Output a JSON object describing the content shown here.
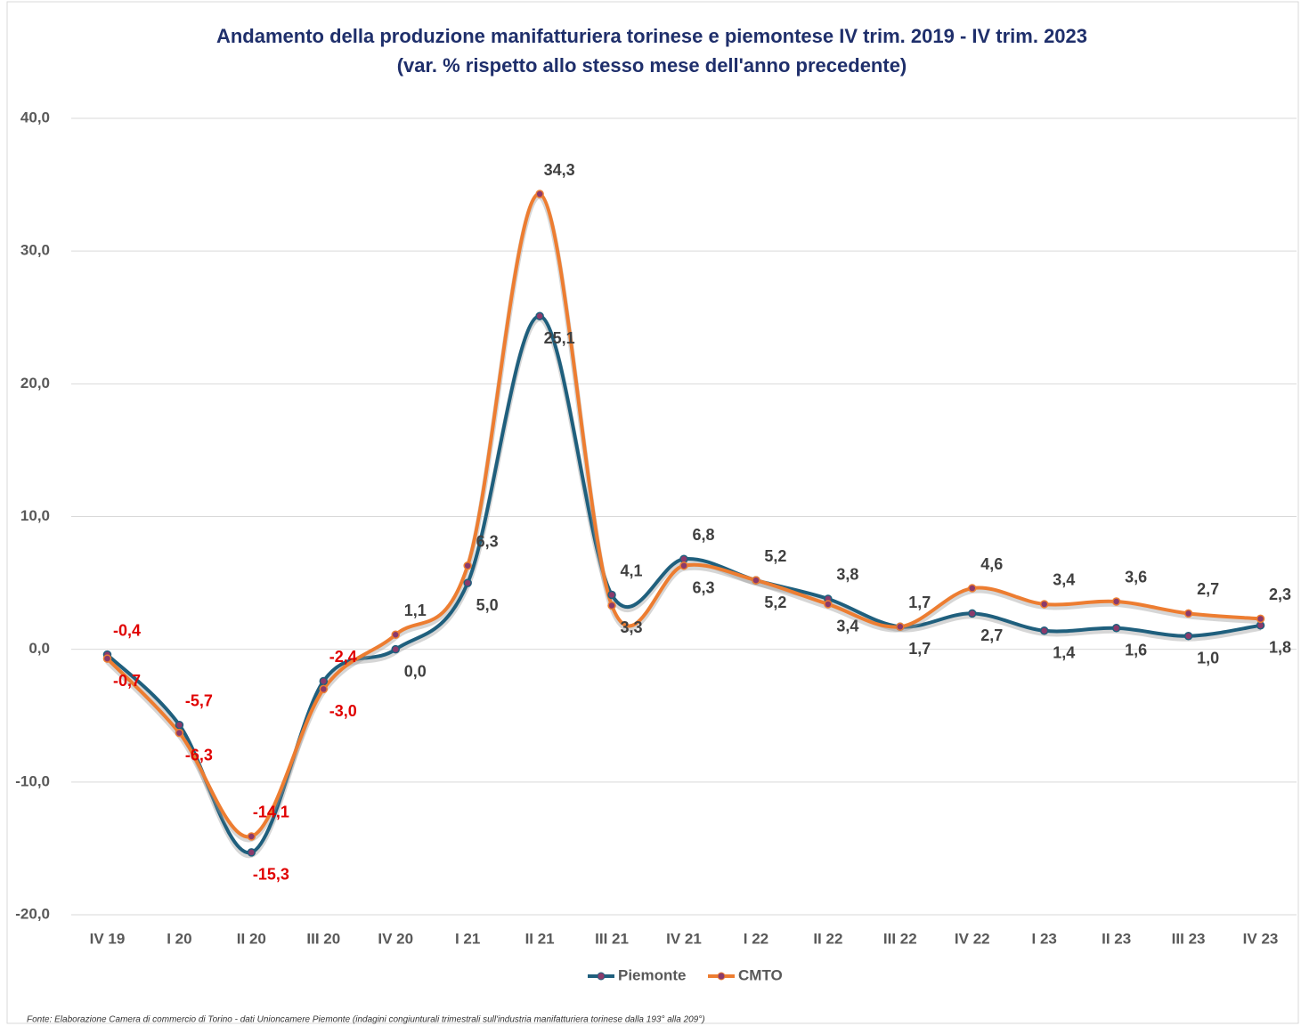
{
  "chart_data": {
    "type": "line",
    "title": "Andamento della produzione manifatturiera torinese e piemontese  IV trim. 2019 - IV trim. 2023",
    "subtitle": "(var. % rispetto allo stesso mese dell'anno precedente)",
    "categories": [
      "IV 19",
      "I 20",
      "II 20",
      "III 20",
      "IV 20",
      "I 21",
      "II 21",
      "III 21",
      "IV 21",
      "I 22",
      "II 22",
      "III 22",
      "IV 22",
      "I 23",
      "II 23",
      "III 23",
      "IV 23"
    ],
    "series": [
      {
        "name": "Piemonte",
        "color": "#1f5f7d",
        "values": [
          -0.4,
          -5.7,
          -15.3,
          -2.4,
          0.0,
          5.0,
          25.1,
          4.1,
          6.8,
          5.2,
          3.8,
          1.7,
          2.7,
          1.4,
          1.6,
          1.0,
          1.8
        ],
        "value_labels": [
          "-0,4",
          "-5,7",
          "-15,3",
          "-2,4",
          "0,0",
          "5,0",
          "25,1",
          "4,1",
          "6,8",
          "5,2",
          "3,8",
          "1,7",
          "2,7",
          "1,4",
          "1,6",
          "1,0",
          "1,8"
        ]
      },
      {
        "name": "CMTO",
        "color": "#ed7d31",
        "values": [
          -0.7,
          -6.3,
          -14.1,
          -3.0,
          1.1,
          6.3,
          34.3,
          3.3,
          6.3,
          5.2,
          3.4,
          1.7,
          4.6,
          3.4,
          3.6,
          2.7,
          2.3
        ],
        "value_labels": [
          "-0,7",
          "-6,3",
          "-14,1",
          "-3,0",
          "1,1",
          "6,3",
          "34,3",
          "3,3",
          "6,3",
          "5,2",
          "3,4",
          "1,7",
          "4,6",
          "3,4",
          "3,6",
          "2,7",
          "2,3"
        ]
      }
    ],
    "ylim": [
      -20,
      40
    ],
    "yticks": [
      {
        "value": -20,
        "label": "-20,0"
      },
      {
        "value": -10,
        "label": "-10,0"
      },
      {
        "value": 0,
        "label": "0,0"
      },
      {
        "value": 10,
        "label": "10,0"
      },
      {
        "value": 20,
        "label": "20,0"
      },
      {
        "value": 30,
        "label": "30,0"
      },
      {
        "value": 40,
        "label": "40,0"
      }
    ],
    "grid": true,
    "legend": "bottom",
    "source": "Fonte: Elaborazione Camera di commercio di Torino - dati Unioncamere Piemonte (indagini congiunturali trimestrali  sull'industria manifatturiera torinese dalla 193° alla 209°)"
  }
}
